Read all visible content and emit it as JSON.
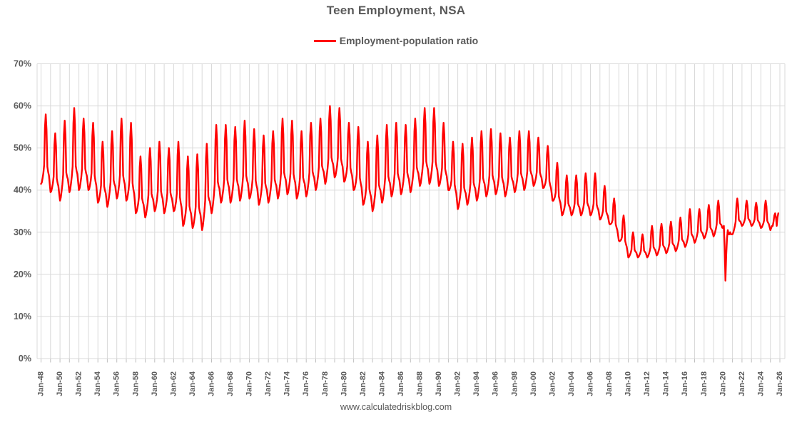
{
  "title": "Teen Employment, NSA",
  "legend": {
    "label": "Employment-population ratio",
    "color": "#ff0000"
  },
  "watermark": "www.calculatedriskblog.com",
  "colors": {
    "series_red": "#ff0000",
    "gridline": "#d9d9d9",
    "axis_text": "#595959"
  },
  "y_axis": {
    "min": 0,
    "max": 70,
    "step": 10,
    "tick_labels": [
      "0%",
      "10%",
      "20%",
      "30%",
      "40%",
      "50%",
      "60%",
      "70%"
    ]
  },
  "x_axis": {
    "first_year": 1948,
    "last_year": 2026,
    "label_every_years": 2,
    "gridline_every_years": 1,
    "tick_labels": [
      "Jan-48",
      "Jan-50",
      "Jan-52",
      "Jan-54",
      "Jan-56",
      "Jan-58",
      "Jan-60",
      "Jan-62",
      "Jan-64",
      "Jan-66",
      "Jan-68",
      "Jan-70",
      "Jan-72",
      "Jan-74",
      "Jan-76",
      "Jan-78",
      "Jan-80",
      "Jan-82",
      "Jan-84",
      "Jan-86",
      "Jan-88",
      "Jan-90",
      "Jan-92",
      "Jan-94",
      "Jan-96",
      "Jan-98",
      "Jan-00",
      "Jan-02",
      "Jan-04",
      "Jan-06",
      "Jan-08",
      "Jan-10",
      "Jan-12",
      "Jan-14",
      "Jan-16",
      "Jan-18",
      "Jan-20",
      "Jan-22",
      "Jan-24",
      "Jan-26"
    ]
  },
  "chart_data": {
    "type": "line",
    "title": "Teen Employment, NSA",
    "series_name": "Employment-population ratio",
    "color": "#ff0000",
    "x_unit": "monthly",
    "x_start": "Jan-1948",
    "x_end": "Nov-2025",
    "ylabel": "Employment-population ratio (%)",
    "ylim": [
      0,
      70
    ],
    "grid": true,
    "legend_position": "top-center",
    "annual_low_high_pct": [
      [
        1948,
        41.5,
        58
      ],
      [
        1949,
        39.5,
        53.5
      ],
      [
        1950,
        37.5,
        56.5
      ],
      [
        1951,
        39.5,
        59.5
      ],
      [
        1952,
        40,
        57
      ],
      [
        1953,
        40,
        56
      ],
      [
        1954,
        37,
        51.5
      ],
      [
        1955,
        36,
        54
      ],
      [
        1956,
        38,
        57
      ],
      [
        1957,
        37.5,
        56
      ],
      [
        1958,
        34.5,
        48
      ],
      [
        1959,
        33.5,
        50
      ],
      [
        1960,
        35,
        51.5
      ],
      [
        1961,
        34.5,
        50
      ],
      [
        1962,
        35,
        51.5
      ],
      [
        1963,
        31.5,
        48
      ],
      [
        1964,
        31,
        48.5
      ],
      [
        1965,
        30.5,
        51
      ],
      [
        1966,
        34.5,
        55.5
      ],
      [
        1967,
        37,
        55.5
      ],
      [
        1968,
        37,
        55
      ],
      [
        1969,
        37.5,
        56.5
      ],
      [
        1970,
        38,
        54.5
      ],
      [
        1971,
        36.5,
        53
      ],
      [
        1972,
        37,
        54
      ],
      [
        1973,
        38,
        57
      ],
      [
        1974,
        39,
        56.5
      ],
      [
        1975,
        38,
        54
      ],
      [
        1976,
        38.5,
        56
      ],
      [
        1977,
        40,
        57
      ],
      [
        1978,
        41.5,
        60
      ],
      [
        1979,
        43,
        59.5
      ],
      [
        1980,
        42,
        56
      ],
      [
        1981,
        40,
        55
      ],
      [
        1982,
        36.5,
        51.5
      ],
      [
        1983,
        35,
        53
      ],
      [
        1984,
        37,
        55.5
      ],
      [
        1985,
        38.5,
        56
      ],
      [
        1986,
        39,
        55.5
      ],
      [
        1987,
        39.5,
        57
      ],
      [
        1988,
        41,
        59.5
      ],
      [
        1989,
        41.5,
        59.5
      ],
      [
        1990,
        41,
        56
      ],
      [
        1991,
        40,
        51.5
      ],
      [
        1992,
        35.5,
        51
      ],
      [
        1993,
        36.5,
        52.5
      ],
      [
        1994,
        37.5,
        54
      ],
      [
        1995,
        38.5,
        54.5
      ],
      [
        1996,
        39,
        53.5
      ],
      [
        1997,
        38.5,
        52.5
      ],
      [
        1998,
        39.5,
        54
      ],
      [
        1999,
        40,
        54
      ],
      [
        2000,
        41,
        52.5
      ],
      [
        2001,
        40.5,
        50.5
      ],
      [
        2002,
        37.5,
        46.5
      ],
      [
        2003,
        34,
        43.5
      ],
      [
        2004,
        34,
        43.5
      ],
      [
        2005,
        34,
        44
      ],
      [
        2006,
        34,
        44
      ],
      [
        2007,
        33,
        41
      ],
      [
        2008,
        32,
        38
      ],
      [
        2009,
        28,
        34
      ],
      [
        2010,
        24,
        30
      ],
      [
        2011,
        24,
        29.5
      ],
      [
        2012,
        24,
        31.5
      ],
      [
        2013,
        24.5,
        32
      ],
      [
        2014,
        25,
        32.5
      ],
      [
        2015,
        25.5,
        33.5
      ],
      [
        2016,
        26.5,
        35.5
      ],
      [
        2017,
        27.5,
        35.5
      ],
      [
        2018,
        28.5,
        36.5
      ],
      [
        2019,
        29,
        37.5
      ],
      [
        2020,
        30.5,
        30.5
      ],
      [
        2021,
        29.5,
        38
      ],
      [
        2022,
        31.5,
        37.5
      ],
      [
        2023,
        31.5,
        37
      ],
      [
        2024,
        31,
        37.5
      ],
      [
        2025,
        30.5,
        34.5
      ]
    ],
    "seasonal_weights_jan_to_dec": [
      0,
      0.03,
      0.1,
      0.18,
      0.3,
      0.82,
      1.0,
      0.8,
      0.3,
      0.24,
      0.2,
      0.1
    ],
    "monthly_overrides_pct": {
      "2020": [
        31,
        31.5,
        26.5,
        18.5,
        24.5,
        28.5,
        30.5,
        29.5,
        29.5,
        30,
        29.5,
        29.5
      ],
      "2025": [
        30.5,
        31,
        31.5,
        31.5,
        32.5,
        34,
        34.5,
        33.5,
        31.5,
        33.5,
        34.5
      ]
    },
    "notes": "Monthly NSA series reconstructed from annual winter-low / summer-peak values read off the chart; strong annual seasonality with summer spikes. COVID crash to ~18.5% in Apr-2020."
  }
}
